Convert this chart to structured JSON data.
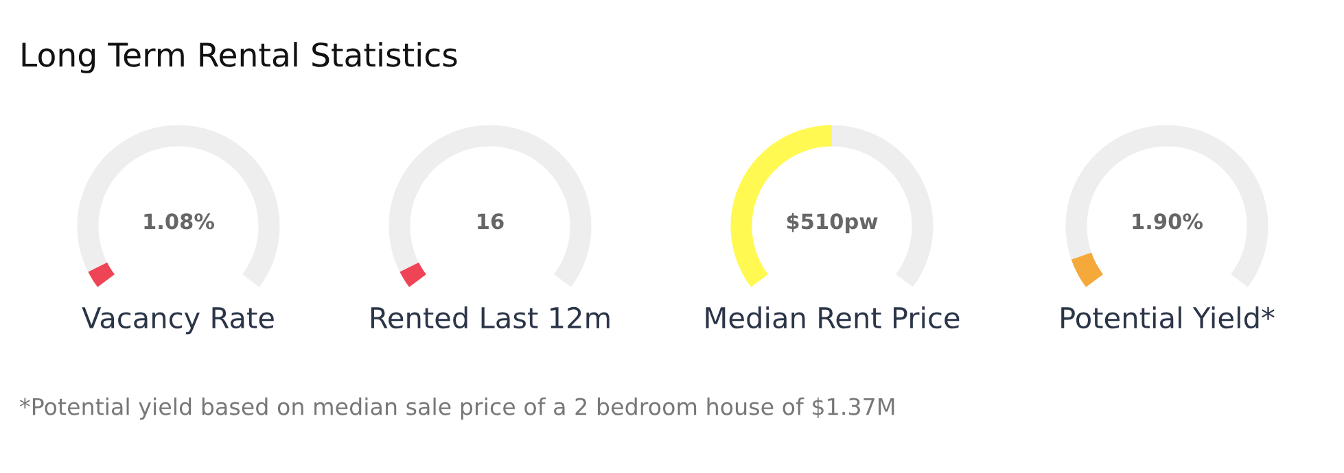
{
  "chart_data": [
    {
      "type": "other",
      "title": "Long Term Rental Statistics",
      "annotations": [
        "*Potential yield based on median sale price of a 2 bedroom house of $1.37M"
      ]
    },
    {
      "type": "donut",
      "xlabel": "Vacancy Rate",
      "annotations": [
        "1.08%"
      ],
      "categories": [
        null,
        null
      ],
      "values": [
        4,
        96
      ],
      "colors": [
        "#ee4455",
        "#eeeeee"
      ]
    },
    {
      "type": "donut",
      "xlabel": "Rented Last 12m",
      "annotations": [
        "16"
      ],
      "categories": [
        null,
        null
      ],
      "values": [
        4,
        96
      ],
      "colors": [
        "#ee4455",
        "#eeeeee"
      ]
    },
    {
      "type": "donut",
      "xlabel": "Median Rent Price",
      "annotations": [
        "$510pw"
      ],
      "categories": [
        null,
        null
      ],
      "values": [
        50,
        50
      ],
      "colors": [
        "#fff952",
        "#eeeeee"
      ]
    },
    {
      "type": "donut",
      "xlabel": "Potential Yield*",
      "annotations": [
        "1.90%"
      ],
      "categories": [
        null,
        null
      ],
      "values": [
        7,
        93
      ],
      "colors": [
        "#f5a93a",
        "#eeeeee"
      ]
    }
  ]
}
